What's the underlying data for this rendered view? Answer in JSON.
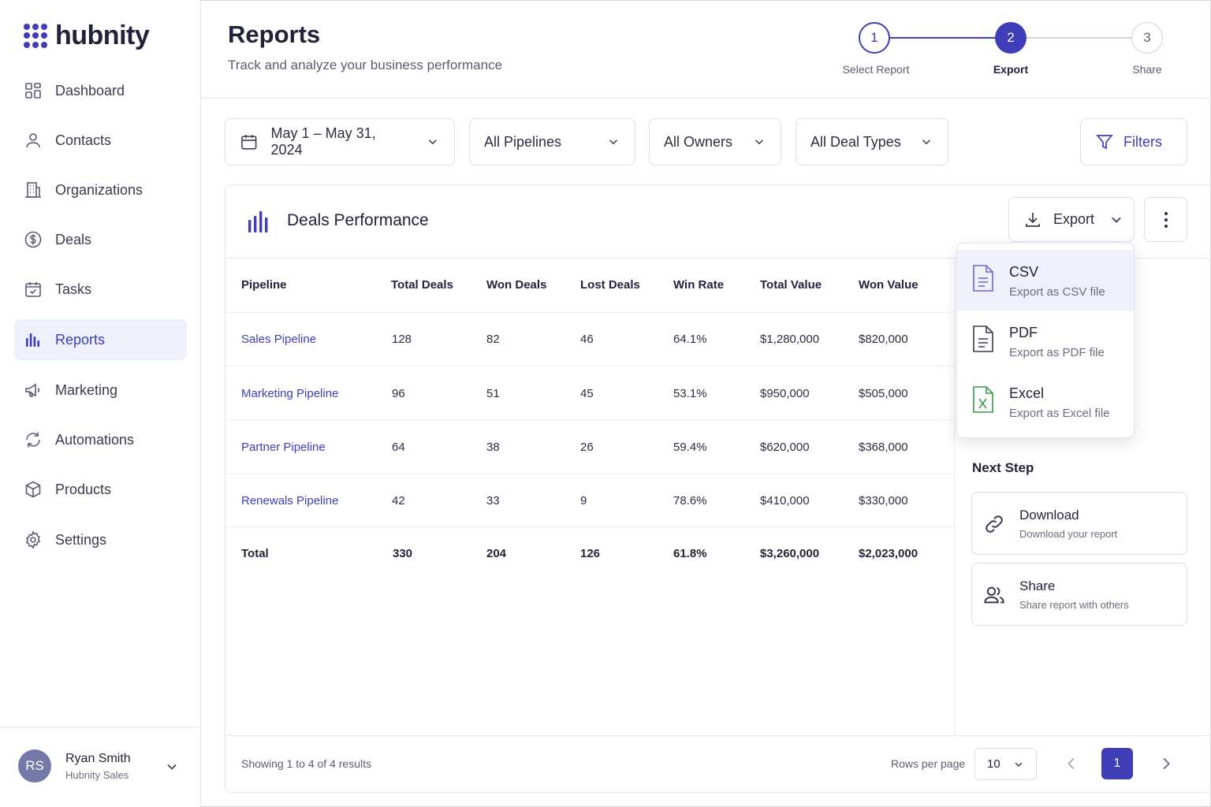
{
  "brand": {
    "name": "hubnity",
    "accent": "#3f3db8"
  },
  "nav": {
    "items": [
      {
        "label": "Dashboard",
        "icon": "grid-icon"
      },
      {
        "label": "Contacts",
        "icon": "user-icon"
      },
      {
        "label": "Organizations",
        "icon": "building-icon"
      },
      {
        "label": "Deals",
        "icon": "dollar-circle-icon"
      },
      {
        "label": "Tasks",
        "icon": "calendar-check-icon"
      },
      {
        "label": "Reports",
        "icon": "bar-chart-icon",
        "active": true
      },
      {
        "label": "Marketing",
        "icon": "megaphone-icon"
      },
      {
        "label": "Automations",
        "icon": "refresh-icon"
      },
      {
        "label": "Products",
        "icon": "box-icon"
      },
      {
        "label": "Settings",
        "icon": "gear-icon"
      }
    ]
  },
  "user": {
    "initials": "RS",
    "name": "Ryan Smith",
    "org": "Hubnity Sales"
  },
  "header": {
    "title": "Reports",
    "subtitle": "Track and analyze your business performance"
  },
  "steps": [
    {
      "number": "1",
      "label": "Select Report",
      "state": "completed"
    },
    {
      "number": "2",
      "label": "Export",
      "state": "current"
    },
    {
      "number": "3",
      "label": "Share",
      "state": "upcoming"
    }
  ],
  "filters": {
    "date_range": "May 1 – May 31, 2024",
    "pipelines": "All Pipelines",
    "owners": "All Owners",
    "deal_types": "All Deal Types",
    "filters_label": "Filters"
  },
  "card": {
    "title": "Deals Performance",
    "export_label": "Export"
  },
  "table": {
    "columns": [
      "Pipeline",
      "Total Deals",
      "Won Deals",
      "Lost Deals",
      "Win Rate",
      "Total Value",
      "Won Value"
    ],
    "rows": [
      [
        "Sales Pipeline",
        "128",
        "82",
        "46",
        "64.1%",
        "$1,280,000",
        "$820,000"
      ],
      [
        "Marketing Pipeline",
        "96",
        "51",
        "45",
        "53.1%",
        "$950,000",
        "$505,000"
      ],
      [
        "Partner Pipeline",
        "64",
        "38",
        "26",
        "59.4%",
        "$620,000",
        "$368,000"
      ],
      [
        "Renewals Pipeline",
        "42",
        "33",
        "9",
        "78.6%",
        "$410,000",
        "$330,000"
      ]
    ],
    "total": [
      "Total",
      "330",
      "204",
      "126",
      "61.8%",
      "$3,260,000",
      "$2,023,000"
    ]
  },
  "export_menu": [
    {
      "title": "CSV",
      "desc": "Export as CSV file",
      "icon": "file-csv-icon",
      "highlighted": true
    },
    {
      "title": "PDF",
      "desc": "Export as PDF file",
      "icon": "file-pdf-icon"
    },
    {
      "title": "Excel",
      "desc": "Export as Excel file",
      "icon": "file-excel-icon"
    }
  ],
  "next_step": {
    "title": "Next Step",
    "cards": [
      {
        "title": "Download",
        "desc": "Download your report",
        "icon": "link-icon"
      },
      {
        "title": "Share",
        "desc": "Share report with others",
        "icon": "users-icon"
      }
    ]
  },
  "footer": {
    "showing": "Showing 1 to 4 of 4 results",
    "rows_per_page_label": "Rows per page",
    "rows_per_page": "10",
    "current_page": "1"
  }
}
